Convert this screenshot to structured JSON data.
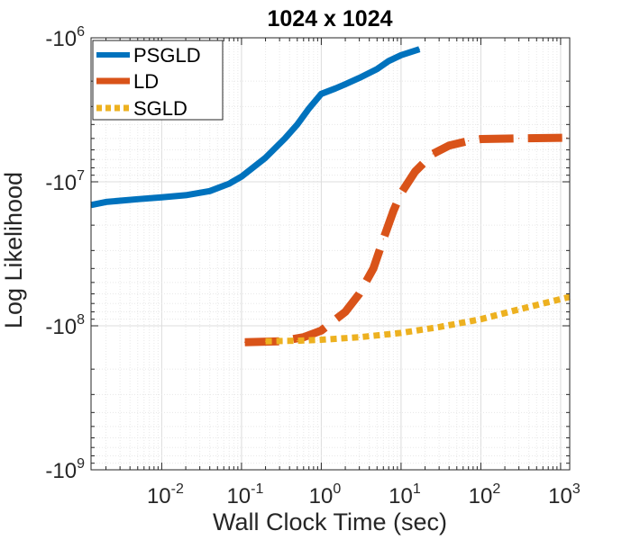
{
  "chart_data": {
    "type": "line",
    "title": "1024 x 1024",
    "xlabel": "Wall Clock Time (sec)",
    "ylabel": "Log Likelihood",
    "xscale": "log",
    "yscale": "log",
    "xlim": [
      0.0013,
      1300
    ],
    "ylim": [
      -1000000,
      -1000000000
    ],
    "grid": true,
    "legend_location": "top-left",
    "x_ticks": [
      {
        "base": "10",
        "exp": "-2",
        "value": 0.01
      },
      {
        "base": "10",
        "exp": "-1",
        "value": 0.1
      },
      {
        "base": "10",
        "exp": "0",
        "value": 1
      },
      {
        "base": "10",
        "exp": "1",
        "value": 10
      },
      {
        "base": "10",
        "exp": "2",
        "value": 100
      },
      {
        "base": "10",
        "exp": "3",
        "value": 1000
      }
    ],
    "y_ticks": [
      {
        "base": "-10",
        "exp": "6",
        "value": -1000000
      },
      {
        "base": "-10",
        "exp": "7",
        "value": -10000000
      },
      {
        "base": "-10",
        "exp": "8",
        "value": -100000000
      },
      {
        "base": "-10",
        "exp": "9",
        "value": -1000000000
      }
    ],
    "series": [
      {
        "name": "PSGLD",
        "color": "#0072BD",
        "style": "solid",
        "points": [
          [
            0.0013,
            -14500000
          ],
          [
            0.002,
            -13800000
          ],
          [
            0.005,
            -13200000
          ],
          [
            0.01,
            -12800000
          ],
          [
            0.02,
            -12400000
          ],
          [
            0.04,
            -11600000
          ],
          [
            0.07,
            -10300000
          ],
          [
            0.1,
            -9200000
          ],
          [
            0.2,
            -6800000
          ],
          [
            0.35,
            -5000000
          ],
          [
            0.5,
            -4000000
          ],
          [
            0.7,
            -3100000
          ],
          [
            1.0,
            -2450000
          ],
          [
            1.5,
            -2250000
          ],
          [
            2.0,
            -2100000
          ],
          [
            3.0,
            -1900000
          ],
          [
            5.0,
            -1650000
          ],
          [
            7.0,
            -1450000
          ],
          [
            10.0,
            -1320000
          ],
          [
            17.0,
            -1200000
          ]
        ]
      },
      {
        "name": "LD",
        "color": "#D95319",
        "style": "dashed",
        "points": [
          [
            0.11,
            -130000000
          ],
          [
            0.3,
            -128000000
          ],
          [
            0.6,
            -120000000
          ],
          [
            1.0,
            -108000000
          ],
          [
            2.0,
            -80000000
          ],
          [
            3.0,
            -60000000
          ],
          [
            4.5,
            -40000000
          ],
          [
            6.0,
            -25000000
          ],
          [
            8.0,
            -16000000
          ],
          [
            10.0,
            -12000000
          ],
          [
            15.0,
            -8500000
          ],
          [
            25.0,
            -6400000
          ],
          [
            40.0,
            -5600000
          ],
          [
            70.0,
            -5200000
          ],
          [
            100.0,
            -5050000
          ],
          [
            300.0,
            -5000000
          ],
          [
            1200.0,
            -4950000
          ]
        ]
      },
      {
        "name": "SGLD",
        "color": "#EDB120",
        "style": "dotted",
        "points": [
          [
            0.2,
            -128000000
          ],
          [
            0.5,
            -127000000
          ],
          [
            1.0,
            -125000000
          ],
          [
            3.0,
            -120000000
          ],
          [
            10.0,
            -112000000
          ],
          [
            30.0,
            -102000000
          ],
          [
            100.0,
            -90000000
          ],
          [
            300.0,
            -77000000
          ],
          [
            1300.0,
            -63000000
          ]
        ]
      }
    ]
  }
}
